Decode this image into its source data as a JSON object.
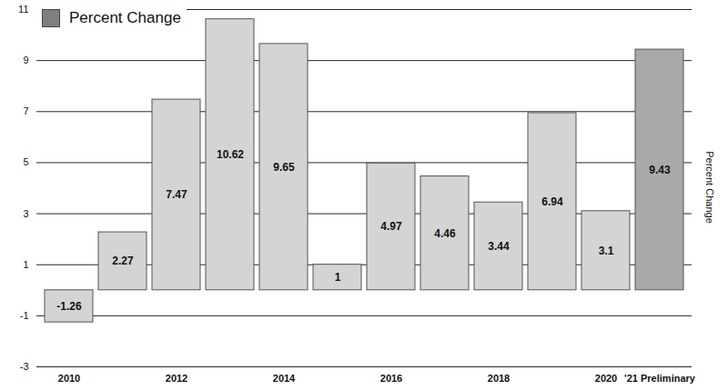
{
  "chart_data": {
    "type": "bar",
    "categories": [
      "2010",
      null,
      "2012",
      null,
      "2014",
      null,
      "2016",
      null,
      "2018",
      null,
      "2020",
      "'21 Preliminary"
    ],
    "series": [
      {
        "name": "Percent Change",
        "color": "#7f7f7f",
        "colors": [
          "#d4d4d4",
          "#d4d4d4",
          "#d4d4d4",
          "#d4d4d4",
          "#d4d4d4",
          "#d4d4d4",
          "#d4d4d4",
          "#d4d4d4",
          "#d4d4d4",
          "#d4d4d4",
          "#d4d4d4",
          "#a9a9a9"
        ],
        "values": [
          -1.26,
          2.27,
          7.47,
          10.62,
          9.65,
          1,
          4.97,
          4.46,
          3.44,
          6.94,
          3.1,
          9.43
        ]
      }
    ],
    "y_label": "Percent Change",
    "ylim": [
      -3,
      11
    ],
    "yticks": [
      -3,
      -1,
      1,
      3,
      5,
      7,
      9,
      11
    ],
    "grid": true,
    "legend": "top-left",
    "data_labels": true
  }
}
